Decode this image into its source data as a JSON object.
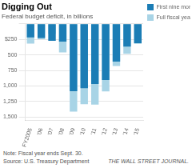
{
  "chart_data": {
    "type": "bar",
    "title": "Digging Out",
    "subtitle": "Federal budget deficit, in billions",
    "categories": [
      "FY2005",
      "'06",
      "'07",
      "'08",
      "'09",
      "'10",
      "'11",
      "'12",
      "'13",
      "'14",
      "'15"
    ],
    "series": [
      {
        "name": "Full fiscal year",
        "color": "#a8d4e6",
        "values": [
          319,
          248,
          161,
          459,
          1413,
          1294,
          1300,
          1087,
          680,
          483,
          320
        ]
      },
      {
        "name": "First nine months",
        "color": "#1b7db5",
        "values": [
          218,
          227,
          274,
          285,
          1086,
          1037,
          970,
          904,
          607,
          366,
          313
        ]
      }
    ],
    "ylim": [
      1550,
      0
    ],
    "yticks": [
      {
        "value": 0,
        "label": ""
      },
      {
        "value": 250,
        "label": "$250"
      },
      500,
      750,
      {
        "value": 1000,
        "label": "1,000"
      },
      {
        "value": 1250,
        "label": "1,250"
      },
      {
        "value": 1500,
        "label": "1,500"
      }
    ],
    "grid": true,
    "legend": "right",
    "note": "Note: Fiscal year ends Sept. 30.",
    "source": "Source: U.S. Treasury Department",
    "credit": "THE WALL STREET JOURNAL."
  }
}
